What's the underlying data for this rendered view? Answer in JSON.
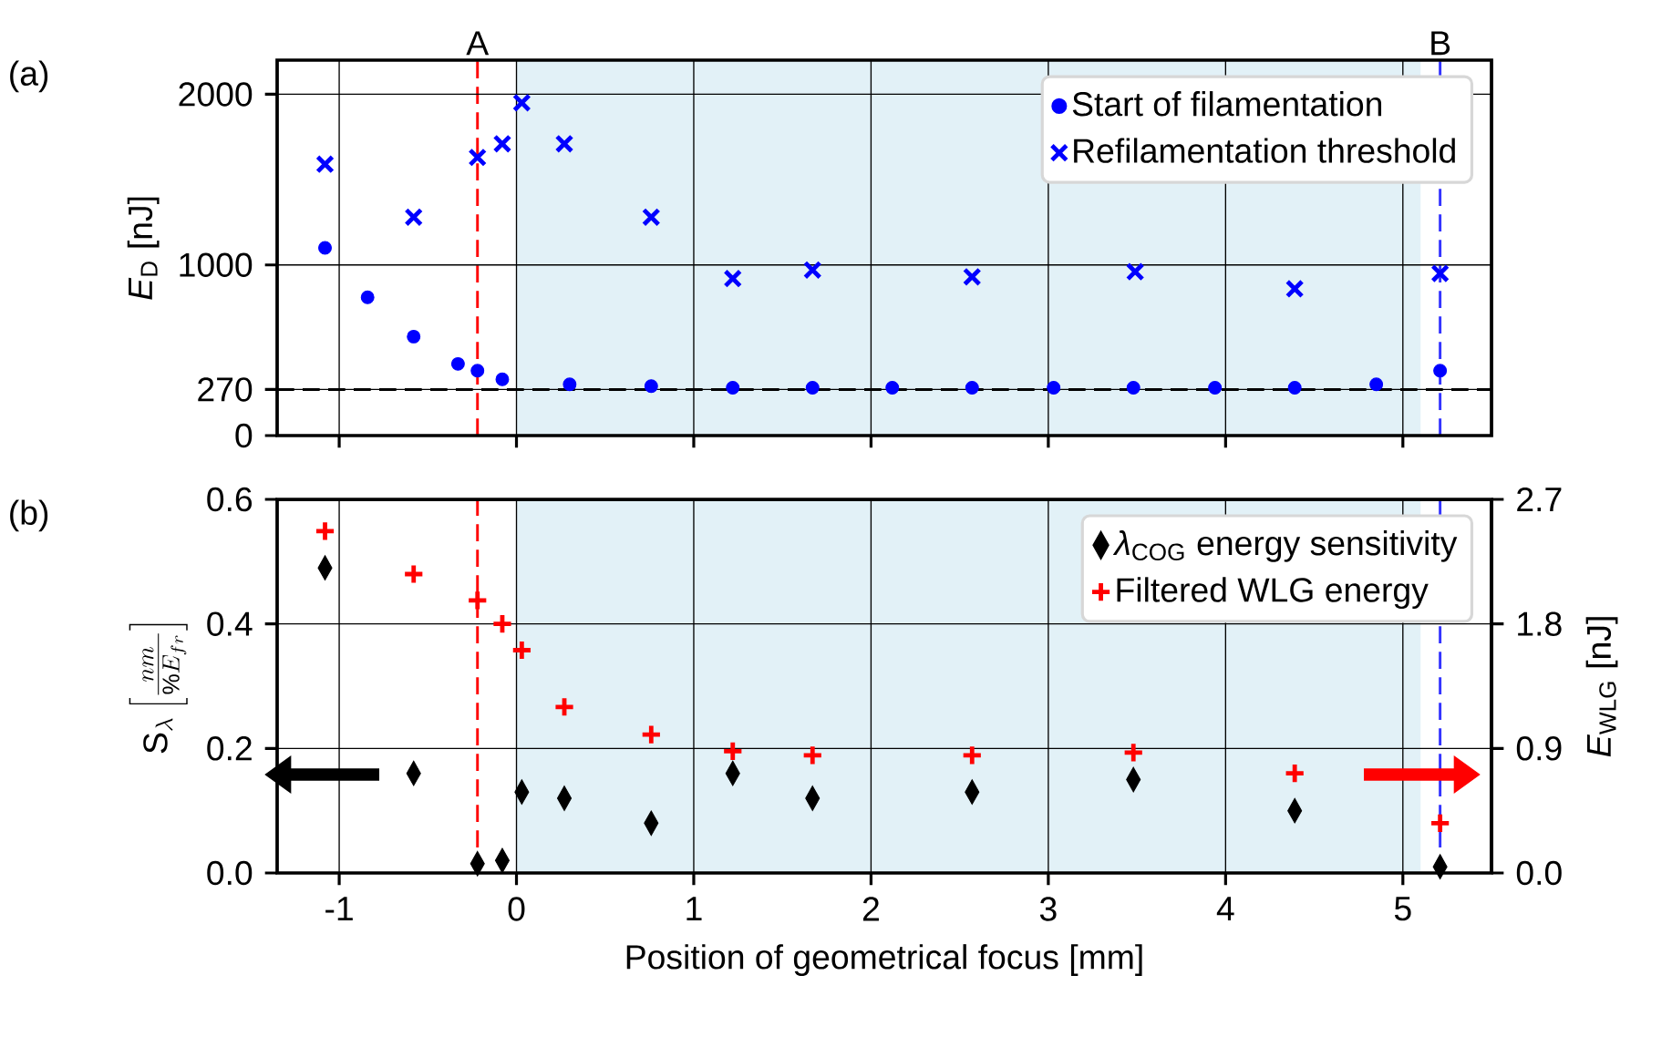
{
  "chart_data": [
    {
      "type": "scatter",
      "annotations": [
        "(a)"
      ],
      "ylabel": "*E*$_{D}$ [nJ]",
      "xlim": [
        -1.35,
        5.5
      ],
      "xticks": [
        -1,
        0,
        1,
        2,
        3,
        4,
        5
      ],
      "ylim": [
        0,
        2200
      ],
      "yticks": [
        0,
        270,
        1000,
        2000
      ],
      "tick_labels": "y",
      "grid": true,
      "legend": "top right",
      "series": [
        {
          "name": "Start of filamentation",
          "color": "#0000ff",
          "marker": "circle",
          "x": [
            -1.08,
            -0.84,
            -0.58,
            -0.33,
            -0.22,
            -0.08,
            0.3,
            0.76,
            1.22,
            1.67,
            2.12,
            2.57,
            3.03,
            3.48,
            3.94,
            4.39,
            4.85,
            5.21
          ],
          "values": [
            1100,
            810,
            580,
            420,
            380,
            330,
            300,
            290,
            280,
            280,
            280,
            280,
            280,
            280,
            280,
            280,
            300,
            380
          ]
        },
        {
          "name": "Refilamentation threshold",
          "color": "#0000ff",
          "marker": "cross",
          "x": [
            -1.08,
            -0.58,
            -0.22,
            -0.08,
            0.03,
            0.27,
            0.76,
            1.22,
            1.67,
            2.57,
            3.49,
            4.39,
            5.21
          ],
          "values": [
            1590,
            1280,
            1630,
            1710,
            1950,
            1710,
            1280,
            920,
            970,
            930,
            960,
            860,
            950
          ]
        }
      ],
      "ref_lines": [
        {
          "axis": "y",
          "value": 270,
          "color": "#000000",
          "line_style": "dashed"
        },
        {
          "axis": "x",
          "value": -0.22,
          "label": "A",
          "color": "#ff0000",
          "line_style": "dashed"
        },
        {
          "axis": "x",
          "value": 5.21,
          "label": "B",
          "color": "#3333ff",
          "line_style": "dashed"
        }
      ],
      "bands": [
        {
          "axis": "x",
          "from": 0,
          "to": 5.1,
          "color": "#e2f1f7"
        }
      ]
    },
    {
      "type": "scatter",
      "annotations": [
        "(b)"
      ],
      "xlabel": "Position of geometrical focus [mm]",
      "ylabel": "\\mathrm{S}_{\\lambda}\\left[\\frac{nm}{\\%E_{fr}}\\right]",
      "y2label": "*E*$_{WLG}$ [nJ]",
      "xlim": [
        -1.35,
        5.5
      ],
      "xticks": [
        -1,
        0,
        1,
        2,
        3,
        4,
        5
      ],
      "ylim": [
        0,
        0.6
      ],
      "yticks": [
        {
          "value": 0,
          "label": "0.0"
        },
        0.2,
        0.4,
        0.6
      ],
      "y2lim": [
        0,
        2.7
      ],
      "y2ticks": [
        {
          "value": 0,
          "label": "0.0"
        },
        0.9,
        1.8,
        2.7
      ],
      "grid": true,
      "legend": "top right",
      "series": [
        {
          "name": "*λ*$_{COG}$ energy sensitivity",
          "color": "#000000",
          "marker": "diamond",
          "x": [
            -1.08,
            -0.58,
            -0.22,
            -0.08,
            0.03,
            0.27,
            0.76,
            1.22,
            1.67,
            2.57,
            3.48,
            4.39,
            5.21
          ],
          "values": [
            0.49,
            0.16,
            0.015,
            0.02,
            0.13,
            0.12,
            0.08,
            0.16,
            0.12,
            0.13,
            0.15,
            0.1,
            0.01
          ]
        },
        {
          "name": "Filtered WLG energy",
          "color": "#ff0000",
          "marker": "plus",
          "axis": "y2",
          "x": [
            -1.08,
            -0.58,
            -0.22,
            -0.08,
            0.03,
            0.27,
            0.76,
            1.22,
            1.67,
            2.57,
            3.48,
            4.39,
            5.21
          ],
          "values": [
            2.47,
            2.16,
            1.97,
            1.8,
            1.61,
            1.2,
            1.0,
            0.88,
            0.85,
            0.85,
            0.87,
            0.72,
            0.36
          ]
        }
      ],
      "ref_lines": [
        {
          "axis": "x",
          "value": -0.22,
          "color": "#ff0000",
          "line_style": "dashed"
        },
        {
          "axis": "x",
          "value": 5.21,
          "color": "#3333ff",
          "line_style": "dashed"
        }
      ],
      "bands": [
        {
          "axis": "x",
          "from": 0,
          "to": 5.1,
          "color": "#e2f1f7"
        }
      ]
    }
  ]
}
